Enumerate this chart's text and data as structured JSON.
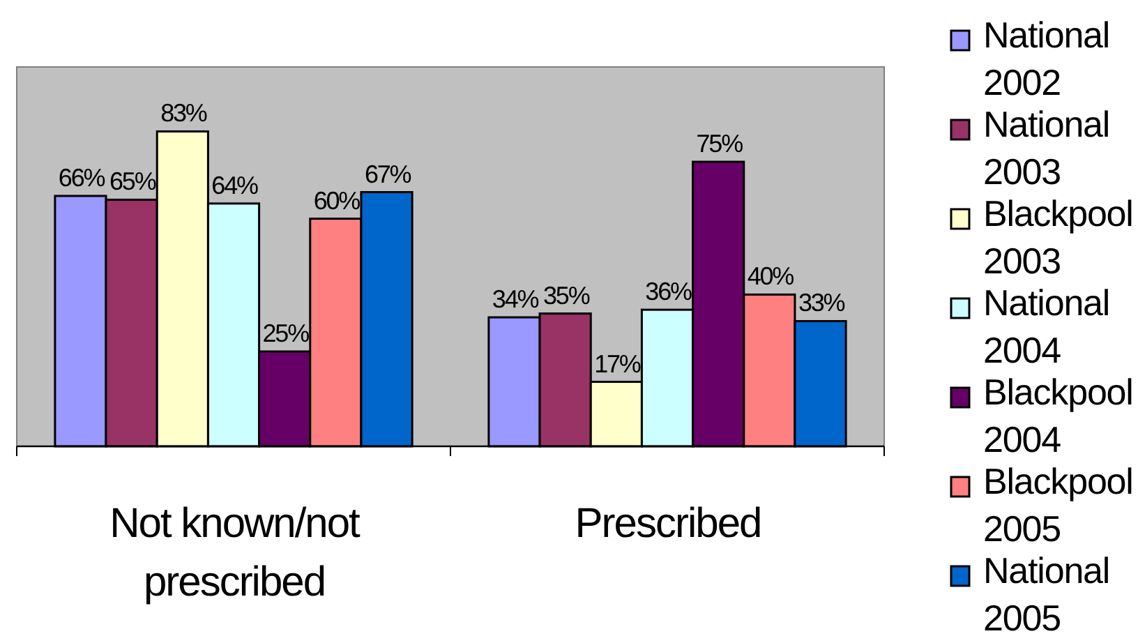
{
  "chart_data": {
    "type": "bar",
    "categories": [
      "Not known/not prescribed",
      "Prescribed"
    ],
    "series": [
      {
        "name": "National 2002",
        "color": "#9999ff",
        "values": [
          66,
          34
        ],
        "value_labels": [
          "66%",
          "34%"
        ]
      },
      {
        "name": "National 2003",
        "color": "#993366",
        "values": [
          65,
          35
        ],
        "value_labels": [
          "65%",
          "35%"
        ]
      },
      {
        "name": "Blackpool 2003",
        "color": "#ffffcc",
        "values": [
          83,
          17
        ],
        "value_labels": [
          "83%",
          "17%"
        ]
      },
      {
        "name": "National 2004",
        "color": "#ccffff",
        "values": [
          64,
          36
        ],
        "value_labels": [
          "64%",
          "36%"
        ]
      },
      {
        "name": "Blackpool 2004",
        "color": "#660066",
        "values": [
          25,
          75
        ],
        "value_labels": [
          "25%",
          "75%"
        ]
      },
      {
        "name": "Blackpool 2005",
        "color": "#ff8080",
        "values": [
          60,
          40
        ],
        "value_labels": [
          "60%",
          "40%"
        ]
      },
      {
        "name": "National 2005",
        "color": "#0066cc",
        "values": [
          67,
          33
        ],
        "value_labels": [
          "67%",
          "33%"
        ]
      }
    ],
    "ylim": [
      0,
      100
    ],
    "tick_labels": "x",
    "legend": "right"
  }
}
